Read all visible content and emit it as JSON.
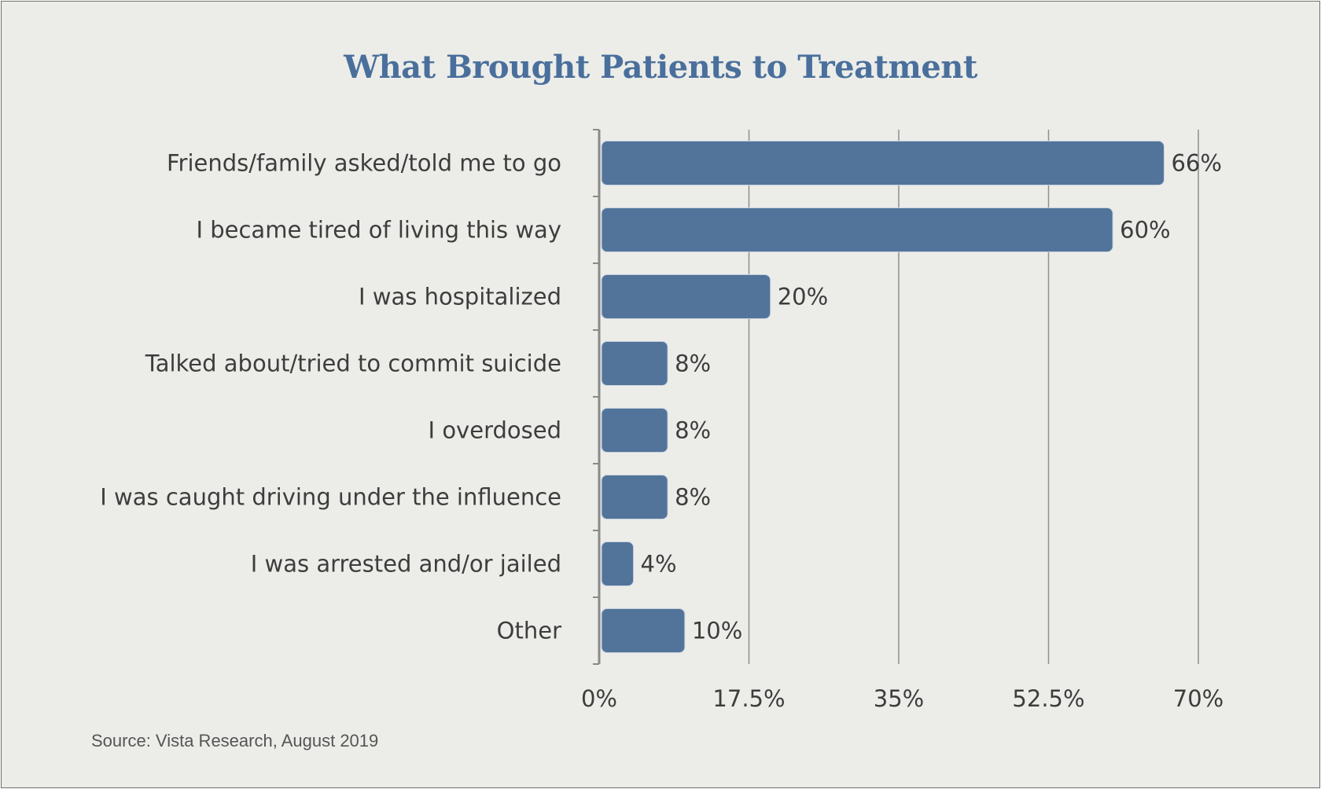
{
  "chart_data": {
    "type": "bar",
    "orientation": "horizontal",
    "title": "What Brought Patients to Treatment",
    "categories": [
      "Friends/family asked/told me to go",
      "I became tired of living this way",
      "I was hospitalized",
      "Talked about/tried to commit suicide",
      "I overdosed",
      "I was caught driving under the influence",
      "I was arrested and/or jailed",
      "Other"
    ],
    "values": [
      66,
      60,
      20,
      8,
      8,
      8,
      4,
      10
    ],
    "value_labels": [
      "66%",
      "60%",
      "20%",
      "8%",
      "8%",
      "8%",
      "4%",
      "10%"
    ],
    "xlim": [
      0,
      70
    ],
    "ticks": [
      0,
      17.5,
      35,
      52.5,
      70
    ],
    "tick_labels": [
      "0%",
      "17.5%",
      "35%",
      "52.5%",
      "70%"
    ],
    "grid": true,
    "legend": "none",
    "bar_color": "#52749a",
    "title_color": "#4a6f9c"
  },
  "source": "Source: Vista Research, August 2019"
}
